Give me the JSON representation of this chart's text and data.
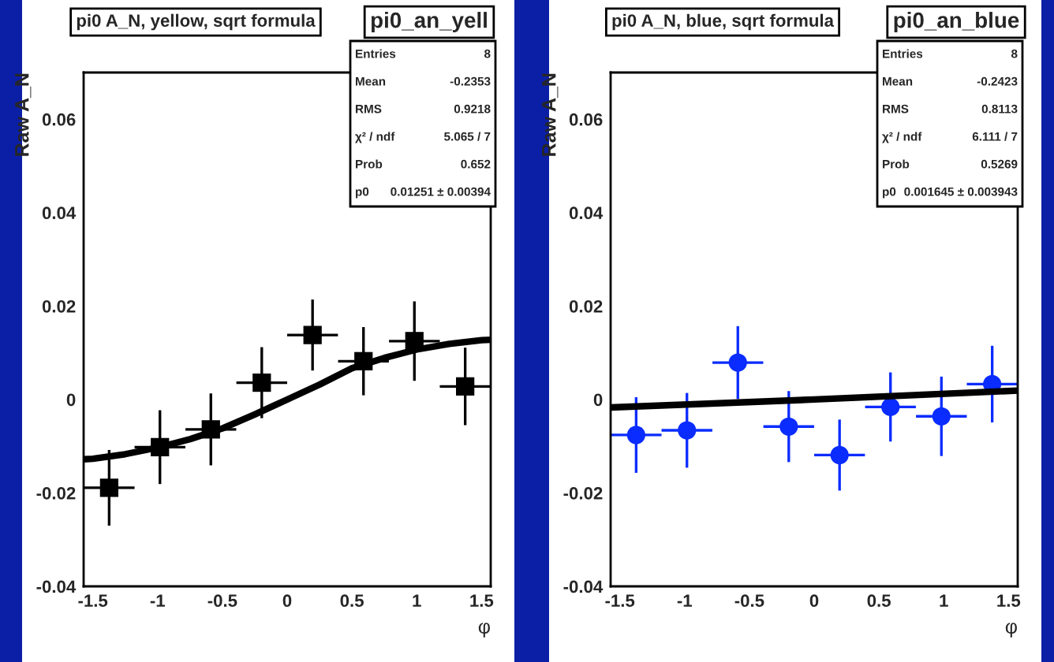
{
  "chart_data": [
    {
      "type": "scatter",
      "title": "pi0 A_N, yellow, sqrt formula",
      "ylabel": "Raw A_N",
      "xlabel": "φ",
      "x": [
        -1.374,
        -0.982,
        -0.589,
        -0.196,
        0.196,
        0.589,
        0.982,
        1.374
      ],
      "series": [
        {
          "color": "#000000",
          "marker": "square",
          "values": [
            -0.0189,
            -0.0102,
            -0.0064,
            0.0036,
            0.0138,
            0.0082,
            0.0125,
            0.0028
          ],
          "errors": [
            0.0081,
            0.0079,
            0.0077,
            0.0076,
            0.0076,
            0.0073,
            0.0085,
            0.0083
          ],
          "xerrors": [
            0.196,
            0.196,
            0.196,
            0.196,
            0.196,
            0.196,
            0.196,
            0.196
          ]
        },
        {
          "type": "line",
          "color": "#000000",
          "marker": "none",
          "x": [
            -1.571,
            -1.5,
            -1.25,
            -1.0,
            -0.75,
            -0.5,
            -0.25,
            0.0,
            0.25,
            0.5,
            0.75,
            1.0,
            1.25,
            1.5,
            1.571
          ],
          "values": [
            -0.0128,
            -0.0127,
            -0.0117,
            -0.0103,
            -0.0085,
            -0.0062,
            -0.0032,
            0.0,
            0.0032,
            0.0067,
            0.0089,
            0.0107,
            0.0119,
            0.0127,
            0.0128
          ]
        }
      ],
      "xlim": [
        -1.571,
        1.571
      ],
      "xticks": [
        -1.5,
        -1,
        -0.5,
        0,
        0.5,
        1,
        1.5
      ],
      "ylim": [
        -0.04,
        0.07
      ],
      "yticks": [
        -0.04,
        -0.02,
        0,
        0.02,
        0.04,
        0.06
      ],
      "grid": false,
      "legend": false,
      "annotations": [
        "pi0_an_yell",
        "Entries",
        "8",
        "Mean",
        "-0.2353",
        "RMS",
        "0.9218",
        "χ² / ndf",
        "5.065 / 7",
        "Prob",
        "0.652",
        "p0",
        "0.01251 ± 0.00394"
      ]
    },
    {
      "type": "scatter",
      "title": "pi0 A_N, blue, sqrt formula",
      "ylabel": "Raw A_N",
      "xlabel": "φ",
      "x": [
        -1.374,
        -0.982,
        -0.589,
        -0.196,
        0.196,
        0.589,
        0.982,
        1.374
      ],
      "series": [
        {
          "color": "#0a2cff",
          "marker": "circle",
          "values": [
            -0.0076,
            -0.0066,
            0.0079,
            -0.0058,
            -0.0119,
            -0.0016,
            -0.0036,
            0.0033
          ],
          "errors": [
            0.0081,
            0.008,
            0.0078,
            0.0076,
            0.0076,
            0.0074,
            0.0085,
            0.0082
          ],
          "xerrors": [
            0.196,
            0.196,
            0.196,
            0.196,
            0.196,
            0.196,
            0.196,
            0.196
          ]
        },
        {
          "type": "line",
          "color": "#000000",
          "marker": "none",
          "x": [
            -1.571,
            0.0,
            1.571
          ],
          "values": [
            -0.0017,
            0.0,
            0.0019
          ]
        }
      ],
      "xlim": [
        -1.571,
        1.571
      ],
      "xticks": [
        -1.5,
        -1,
        -0.5,
        0,
        0.5,
        1,
        1.5
      ],
      "ylim": [
        -0.04,
        0.07
      ],
      "yticks": [
        -0.04,
        -0.02,
        0,
        0.02,
        0.04,
        0.06
      ],
      "grid": false,
      "legend": false,
      "annotations": [
        "pi0_an_blue",
        "Entries",
        "8",
        "Mean",
        "-0.2423",
        "RMS",
        "0.8113",
        "χ² / ndf",
        "6.111 / 7",
        "Prob",
        "0.5269",
        "p0",
        "0.001645 ± 0.003943"
      ]
    }
  ]
}
